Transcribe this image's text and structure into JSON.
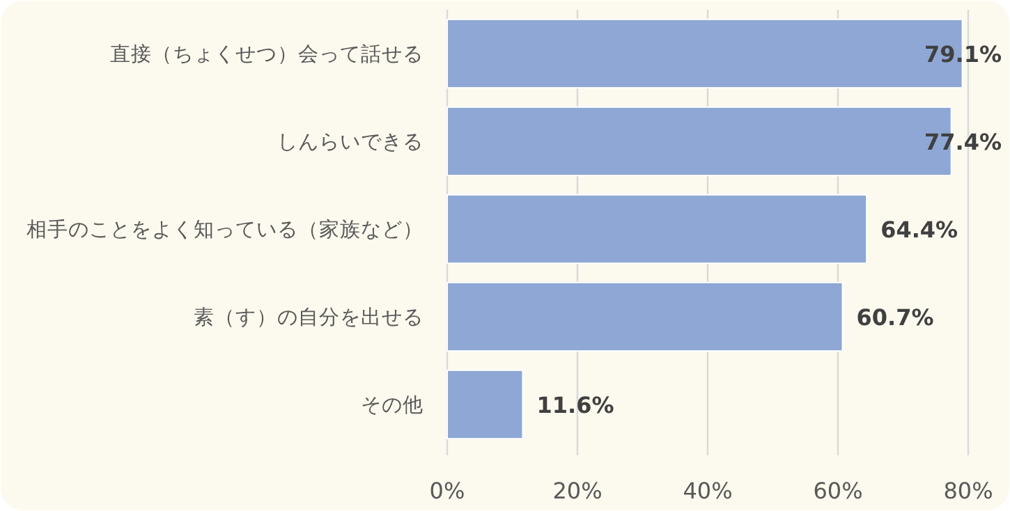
{
  "chart_data": {
    "type": "bar",
    "orientation": "horizontal",
    "categories": [
      "直接（ちょくせつ）会って話せる",
      "しんらいできる",
      "相手のことをよく知っている（家族など）",
      "素（す）の自分を出せる",
      "その他"
    ],
    "values": [
      79.1,
      77.4,
      64.4,
      60.7,
      11.6
    ],
    "value_labels": [
      "79.1%",
      "77.4%",
      "64.4%",
      "60.7%",
      "11.6%"
    ],
    "color": "#8ea7d4",
    "xlim": [
      0,
      80
    ],
    "xticks": [
      {
        "value": 0,
        "label": "0%"
      },
      {
        "value": 20,
        "label": "20%"
      },
      {
        "value": 40,
        "label": "40%"
      },
      {
        "value": 60,
        "label": "60%"
      },
      {
        "value": 80,
        "label": "80%"
      }
    ],
    "grid": "x"
  }
}
